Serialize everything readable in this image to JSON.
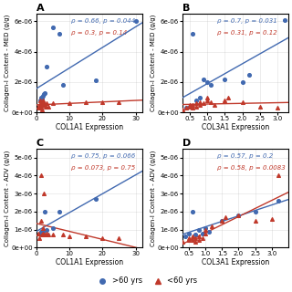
{
  "chart_data": [
    {
      "type": "scatter",
      "title": "A",
      "xlabel": "COL1A1 Expression",
      "ylabel": "Collagen-I Content - MED (g/g)",
      "xlim": [
        0,
        32
      ],
      "ylim": [
        0,
        6.5e-06
      ],
      "xticks": [
        0,
        10,
        20,
        30
      ],
      "yticks": [
        {
          "value": 0,
          "label": "0e+00"
        },
        {
          "value": 2e-06,
          "label": "2e-06"
        },
        {
          "value": 4e-06,
          "label": "4e-06"
        },
        {
          "value": 6e-06,
          "label": "6e-06"
        }
      ],
      "grid": true,
      "legend": "bottom",
      "annotations": [
        {
          "text": "ρ = 0.66, p = 0.044",
          "color": "#4169b0"
        },
        {
          "text": "ρ = 0.3, p = 0.14",
          "color": "#c0392b"
        }
      ],
      "series": [
        {
          "name": ">60 yrs",
          "color": "#4169b0",
          "marker": "circle",
          "x": [
            1.2,
            1.5,
            1.8,
            2.0,
            2.3,
            2.5,
            3.0,
            5.0,
            7.0,
            8.0,
            18.0,
            30.0
          ],
          "values": [
            8e-07,
            1e-06,
            9e-07,
            1.1e-06,
            1.2e-06,
            1.3e-06,
            3e-06,
            5.6e-06,
            5.2e-06,
            1.8e-06,
            2.1e-06,
            6e-06
          ]
        },
        {
          "name": "<60 yrs",
          "color": "#c0392b",
          "marker": "triangle",
          "x": [
            0.5,
            0.8,
            1.0,
            1.2,
            1.5,
            1.5,
            1.7,
            1.8,
            2.0,
            2.0,
            2.2,
            2.5,
            2.8,
            3.0,
            3.5,
            5.0,
            10.0,
            15.0,
            20.0,
            25.0
          ],
          "values": [
            4e-07,
            3e-07,
            5e-07,
            8e-07,
            4e-07,
            6e-07,
            5e-07,
            2e-07,
            8e-07,
            6e-07,
            7e-07,
            5e-07,
            4e-07,
            6e-07,
            4e-07,
            6e-07,
            6e-07,
            7e-07,
            7e-07,
            7e-07
          ]
        },
        {
          "type": "line",
          "color": "#4169b0",
          "x": [
            0,
            32
          ],
          "values": [
            1.572296e-06,
            5.90083e-06
          ]
        },
        {
          "type": "line",
          "color": "#c0392b",
          "x": [
            0,
            32
          ],
          "values": [
            4.996182e-07,
            8.1267e-07
          ]
        }
      ]
    },
    {
      "type": "scatter",
      "title": "B",
      "xlabel": "COL3A1 Expression",
      "ylabel": "Collagen-I Content - MED (g/g)",
      "xlim": [
        0.3,
        3.3
      ],
      "ylim": [
        0,
        6.5e-06
      ],
      "xticks": [
        0.5,
        1.0,
        1.5,
        2.0,
        2.5,
        3.0
      ],
      "yticks": [
        {
          "value": 0,
          "label": "0e+00"
        },
        {
          "value": 2e-06,
          "label": "2e-06"
        },
        {
          "value": 4e-06,
          "label": "4e-06"
        },
        {
          "value": 6e-06,
          "label": "6e-06"
        }
      ],
      "grid": true,
      "legend": "bottom",
      "annotations": [
        {
          "text": "ρ = 0.7, p = 0.031",
          "color": "#4169b0"
        },
        {
          "text": "ρ = 0.31, p = 0.12",
          "color": "#c0392b"
        }
      ],
      "series": [
        {
          "name": ">60 yrs",
          "color": "#4169b0",
          "marker": "circle",
          "x": [
            0.4,
            0.5,
            0.6,
            0.7,
            0.8,
            0.9,
            1.0,
            1.1,
            1.5,
            2.0,
            2.2,
            3.2
          ],
          "values": [
            3e-07,
            4e-07,
            5.2e-06,
            8e-07,
            1e-06,
            2.2e-06,
            2e-06,
            1.8e-06,
            2.2e-06,
            2e-06,
            2.5e-06,
            6.1e-06
          ]
        },
        {
          "name": "<60 yrs",
          "color": "#c0392b",
          "marker": "triangle",
          "x": [
            0.3,
            0.4,
            0.5,
            0.5,
            0.6,
            0.6,
            0.7,
            0.7,
            0.8,
            0.8,
            0.9,
            1.0,
            1.0,
            1.1,
            1.2,
            1.5,
            1.6,
            2.0,
            2.5,
            3.0
          ],
          "values": [
            2e-07,
            3e-07,
            4e-07,
            5e-07,
            3e-07,
            5e-07,
            6e-07,
            4e-07,
            7e-07,
            5e-07,
            6e-07,
            8e-07,
            1e-06,
            7e-07,
            5e-07,
            8e-07,
            1e-06,
            7e-07,
            4e-07,
            3e-07
          ]
        },
        {
          "type": "line",
          "color": "#4169b0",
          "x": [
            0.3,
            3.3
          ],
          "values": [
            9.71782e-07,
            4.911235e-06
          ]
        },
        {
          "type": "line",
          "color": "#c0392b",
          "x": [
            0.3,
            3.3
          ],
          "values": [
            5.253825e-07,
            6.576786e-07
          ]
        }
      ]
    },
    {
      "type": "scatter",
      "title": "C",
      "xlabel": "COL1A1 Expression",
      "ylabel": "Collagen-I Content - ADV (g/g)",
      "xlim": [
        0,
        32
      ],
      "ylim": [
        0,
        5.5e-06
      ],
      "xticks": [
        0,
        10,
        20,
        30
      ],
      "yticks": [
        {
          "value": 0,
          "label": "0e+00"
        },
        {
          "value": 1e-06,
          "label": "1e-06"
        },
        {
          "value": 2e-06,
          "label": "2e-06"
        },
        {
          "value": 3e-06,
          "label": "3e-06"
        },
        {
          "value": 4e-06,
          "label": "4e-06"
        },
        {
          "value": 5e-06,
          "label": "5e-06"
        }
      ],
      "grid": true,
      "legend": "bottom",
      "annotations": [
        {
          "text": "ρ = 0.75, p = 0.066",
          "color": "#4169b0"
        },
        {
          "text": "ρ = 0.073, p = 0.75",
          "color": "#c0392b"
        }
      ],
      "series": [
        {
          "name": ">60 yrs",
          "color": "#4169b0",
          "marker": "circle",
          "x": [
            1.2,
            1.5,
            2.0,
            2.5,
            3.0,
            5.0,
            7.0,
            18.0
          ],
          "values": [
            8e-07,
            9e-07,
            9e-07,
            2e-06,
            1e-06,
            1.1e-06,
            2e-06,
            2.7e-06
          ]
        },
        {
          "name": "<60 yrs",
          "color": "#c0392b",
          "marker": "triangle",
          "x": [
            0.5,
            1.0,
            1.5,
            1.5,
            1.7,
            2.0,
            2.0,
            2.3,
            2.5,
            3.0,
            3.5,
            5.0,
            8.0,
            10.0,
            15.0,
            20.0,
            25.0
          ],
          "values": [
            8e-07,
            5e-07,
            4e-06,
            1.5e-06,
            7e-07,
            1.1e-06,
            8e-07,
            3e-06,
            7e-07,
            8e-07,
            7e-07,
            7e-07,
            7e-07,
            6e-07,
            6e-07,
            5e-07,
            5e-07
          ]
        },
        {
          "type": "line",
          "color": "#4169b0",
          "x": [
            0,
            32
          ],
          "values": [
            8.988247e-07,
            4.249593e-06
          ]
        },
        {
          "type": "line",
          "color": "#c0392b",
          "x": [
            0,
            30.21371
          ],
          "values": [
            1.344035e-06,
            0
          ]
        }
      ]
    },
    {
      "type": "scatter",
      "title": "D",
      "xlabel": "COL3A1 Expression",
      "ylabel": "Collagen-I Content - ADV (g/g)",
      "xlim": [
        0.3,
        3.5
      ],
      "ylim": [
        0,
        5.5e-06
      ],
      "xticks": [
        0.5,
        1.0,
        1.5,
        2.0,
        2.5,
        3.0
      ],
      "yticks": [
        {
          "value": 0,
          "label": "0e+00"
        },
        {
          "value": 1e-06,
          "label": "1e-06"
        },
        {
          "value": 2e-06,
          "label": "2e-06"
        },
        {
          "value": 3e-06,
          "label": "3e-06"
        },
        {
          "value": 4e-06,
          "label": "4e-06"
        },
        {
          "value": 5e-06,
          "label": "5e-06"
        }
      ],
      "grid": true,
      "legend": "bottom",
      "annotations": [
        {
          "text": "ρ = 0.57, p = 0.2",
          "color": "#4169b0"
        },
        {
          "text": "ρ = 0.58, p = 0.0083",
          "color": "#c0392b"
        }
      ],
      "series": [
        {
          "name": ">60 yrs",
          "color": "#4169b0",
          "marker": "circle",
          "x": [
            0.4,
            0.5,
            0.6,
            0.7,
            0.8,
            0.9,
            1.0,
            1.1,
            1.5,
            2.0,
            2.5,
            3.2
          ],
          "values": [
            6e-07,
            8e-07,
            2e-06,
            7e-07,
            1e-06,
            8e-07,
            1.1e-06,
            9e-07,
            1.5e-06,
            1.8e-06,
            2e-06,
            2.6e-06
          ]
        },
        {
          "name": "<60 yrs",
          "color": "#c0392b",
          "marker": "triangle",
          "x": [
            0.3,
            0.5,
            0.5,
            0.6,
            0.6,
            0.7,
            0.7,
            0.8,
            0.8,
            0.9,
            1.0,
            1.0,
            1.2,
            1.5,
            1.6,
            2.0,
            2.5,
            3.0,
            3.2
          ],
          "values": [
            3e-07,
            4e-07,
            5e-07,
            6e-07,
            4e-07,
            5e-07,
            3e-07,
            6e-07,
            4e-07,
            5e-07,
            1e-06,
            8e-07,
            1.2e-06,
            1.5e-06,
            1.7e-06,
            1.8e-06,
            1.5e-06,
            1.6e-06,
            4e-06
          ]
        },
        {
          "type": "line",
          "color": "#4169b0",
          "x": [
            0.3,
            3.5
          ],
          "values": [
            7.30611e-07,
            2.670659e-06
          ]
        },
        {
          "type": "line",
          "color": "#c0392b",
          "x": [
            0.3,
            3.5
          ],
          "values": [
            1.931504e-07,
            3.073176e-06
          ]
        }
      ]
    }
  ]
}
